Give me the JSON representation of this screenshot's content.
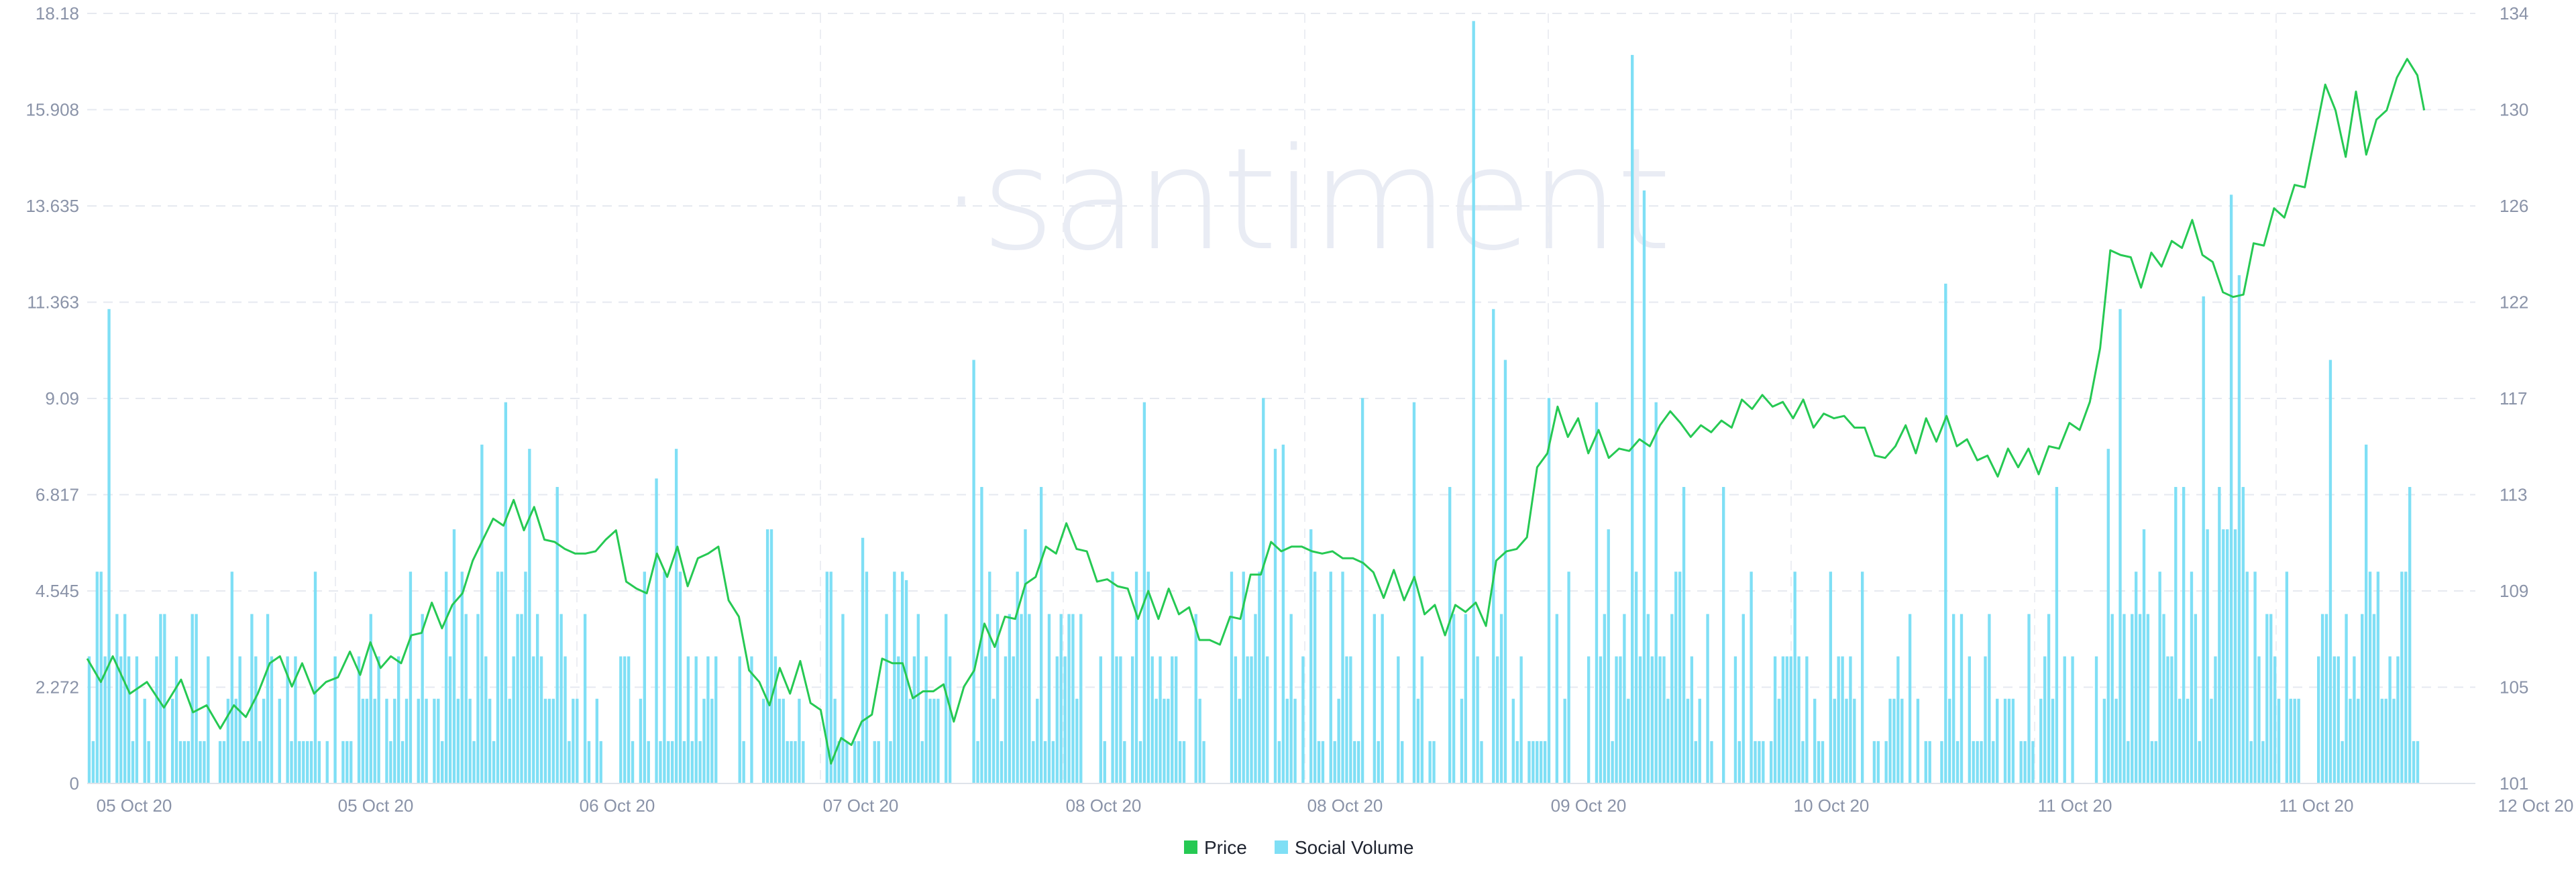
{
  "watermark": "·santiment",
  "chart_data": {
    "type": "line",
    "title": "",
    "xlabel": "",
    "ylabel": "",
    "x_range": [
      "2020-10-04T22:00",
      "2020-10-11T22:00"
    ],
    "x_ticks": [
      {
        "t": 0,
        "label": "05 Oct 20"
      },
      {
        "t": 1.0,
        "label": "05 Oct 20"
      },
      {
        "t": 2.0,
        "label": "06 Oct 20"
      },
      {
        "t": 3.0,
        "label": "07 Oct 20"
      },
      {
        "t": 4.0,
        "label": "08 Oct 20"
      },
      {
        "t": 5.0,
        "label": "08 Oct 20"
      },
      {
        "t": 6.0,
        "label": "09 Oct 20"
      },
      {
        "t": 7.0,
        "label": "10 Oct 20"
      },
      {
        "t": 8.0,
        "label": "11 Oct 20"
      },
      {
        "t": 9.0,
        "label": "11 Oct 20"
      },
      {
        "t": 10.0,
        "label": "12 Oct 20"
      }
    ],
    "y_left": {
      "name": "Social Volume",
      "range": [
        0,
        18.18
      ],
      "ticks": [
        "0",
        "2.272",
        "4.545",
        "6.817",
        "9.09",
        "11.363",
        "13.635",
        "15.908",
        "18.18"
      ]
    },
    "y_right": {
      "name": "Price",
      "range": [
        101,
        134
      ],
      "ticks": [
        "101",
        "105",
        "109",
        "113",
        "117",
        "122",
        "126",
        "130",
        "134"
      ]
    },
    "grid": true,
    "legend_position": "bottom-center",
    "series": [
      {
        "name": "Price",
        "color": "#26c953",
        "type": "line",
        "axis": "right",
        "points": [
          [
            0.0,
            106.0
          ],
          [
            0.08,
            105.7
          ],
          [
            0.15,
            106.1
          ],
          [
            0.25,
            105.2
          ],
          [
            0.35,
            105.0
          ],
          [
            0.45,
            104.6
          ],
          [
            0.55,
            105.1
          ],
          [
            0.62,
            104.4
          ],
          [
            0.7,
            104.0
          ],
          [
            0.78,
            103.7
          ],
          [
            0.86,
            104.0
          ],
          [
            0.93,
            104.2
          ],
          [
            1.0,
            104.5
          ],
          [
            1.07,
            106.5
          ],
          [
            1.13,
            106.1
          ],
          [
            1.2,
            105.5
          ],
          [
            1.26,
            105.8
          ],
          [
            1.33,
            105.2
          ],
          [
            1.4,
            105.0
          ],
          [
            1.47,
            105.9
          ],
          [
            1.54,
            106.3
          ],
          [
            1.6,
            106.0
          ],
          [
            1.66,
            106.7
          ],
          [
            1.72,
            106.3
          ],
          [
            1.78,
            106.1
          ],
          [
            1.84,
            106.5
          ],
          [
            1.9,
            107.0
          ],
          [
            1.96,
            107.8
          ],
          [
            2.02,
            108.4
          ],
          [
            2.08,
            108.0
          ],
          [
            2.14,
            108.3
          ],
          [
            2.2,
            109.5
          ],
          [
            2.26,
            110.2
          ],
          [
            2.32,
            111.8
          ],
          [
            2.38,
            112.0
          ],
          [
            2.44,
            112.4
          ],
          [
            2.5,
            112.8
          ],
          [
            2.56,
            112.2
          ],
          [
            2.62,
            112.5
          ],
          [
            2.68,
            111.8
          ],
          [
            2.74,
            111.0
          ],
          [
            2.8,
            111.4
          ],
          [
            2.86,
            110.5
          ],
          [
            2.92,
            111.2
          ],
          [
            2.98,
            110.6
          ],
          [
            3.04,
            111.8
          ],
          [
            3.1,
            111.5
          ],
          [
            3.16,
            110.0
          ],
          [
            3.22,
            109.0
          ],
          [
            3.28,
            109.5
          ],
          [
            3.34,
            110.5
          ],
          [
            3.4,
            110.2
          ],
          [
            3.46,
            110.8
          ],
          [
            3.52,
            109.8
          ],
          [
            3.58,
            110.3
          ],
          [
            3.64,
            111.2
          ],
          [
            3.7,
            110.8
          ],
          [
            3.76,
            109.2
          ],
          [
            3.82,
            107.8
          ],
          [
            3.88,
            106.2
          ],
          [
            3.94,
            105.0
          ],
          [
            4.0,
            104.7
          ],
          [
            4.06,
            105.6
          ],
          [
            4.12,
            105.2
          ],
          [
            4.18,
            105.9
          ],
          [
            4.24,
            104.8
          ],
          [
            4.3,
            103.8
          ],
          [
            4.36,
            102.2
          ],
          [
            4.42,
            102.6
          ],
          [
            4.48,
            103.0
          ],
          [
            4.54,
            103.3
          ],
          [
            4.6,
            104.3
          ],
          [
            4.66,
            106.0
          ],
          [
            4.72,
            106.5
          ],
          [
            4.78,
            105.8
          ],
          [
            4.84,
            105.0
          ],
          [
            4.9,
            104.6
          ],
          [
            4.96,
            105.3
          ],
          [
            5.02,
            104.9
          ],
          [
            5.08,
            104.0
          ],
          [
            5.14,
            104.8
          ],
          [
            5.2,
            106.2
          ],
          [
            5.26,
            107.5
          ],
          [
            5.32,
            107.2
          ],
          [
            5.38,
            107.8
          ],
          [
            5.44,
            108.4
          ],
          [
            5.5,
            109.2
          ],
          [
            5.56,
            110.2
          ],
          [
            5.62,
            110.8
          ],
          [
            5.68,
            111.2
          ],
          [
            5.74,
            111.8
          ],
          [
            5.8,
            111.4
          ],
          [
            5.86,
            110.6
          ],
          [
            5.92,
            110.0
          ],
          [
            5.98,
            109.4
          ],
          [
            6.04,
            109.8
          ],
          [
            6.1,
            109.0
          ],
          [
            6.16,
            108.4
          ],
          [
            6.22,
            108.9
          ],
          [
            6.28,
            108.4
          ],
          [
            6.34,
            109.0
          ],
          [
            6.4,
            108.6
          ],
          [
            6.46,
            108.2
          ],
          [
            6.52,
            107.5
          ],
          [
            6.58,
            106.8
          ],
          [
            6.64,
            107.3
          ],
          [
            6.7,
            107.8
          ],
          [
            6.76,
            108.4
          ],
          [
            6.82,
            109.6
          ],
          [
            6.88,
            110.3
          ],
          [
            6.94,
            111.0
          ],
          [
            7.0,
            111.3
          ],
          [
            7.06,
            110.8
          ],
          [
            7.12,
            111.5
          ],
          [
            7.18,
            110.6
          ],
          [
            7.24,
            111.2
          ],
          [
            7.3,
            110.6
          ],
          [
            7.36,
            111.0
          ],
          [
            7.42,
            110.3
          ],
          [
            7.48,
            110.8
          ],
          [
            7.54,
            109.7
          ],
          [
            7.6,
            109.3
          ],
          [
            7.66,
            109.8
          ],
          [
            7.72,
            109.2
          ],
          [
            7.78,
            109.5
          ],
          [
            7.84,
            108.6
          ],
          [
            7.9,
            108.3
          ],
          [
            7.96,
            107.7
          ],
          [
            8.02,
            108.3
          ],
          [
            8.08,
            108.7
          ],
          [
            8.14,
            108.4
          ],
          [
            8.2,
            108.1
          ],
          [
            8.26,
            110.2
          ],
          [
            8.32,
            111.3
          ],
          [
            8.38,
            110.7
          ],
          [
            8.44,
            111.9
          ],
          [
            8.5,
            114.2
          ],
          [
            8.56,
            115.5
          ],
          [
            8.62,
            116.8
          ],
          [
            8.68,
            116.2
          ],
          [
            8.74,
            116.3
          ],
          [
            8.8,
            115.5
          ],
          [
            8.86,
            115.8
          ],
          [
            8.92,
            115.3
          ],
          [
            8.98,
            115.0
          ],
          [
            9.04,
            115.6
          ],
          [
            9.1,
            115.4
          ],
          [
            9.16,
            115.8
          ],
          [
            9.22,
            116.0
          ],
          [
            9.28,
            117.3
          ],
          [
            9.34,
            116.1
          ],
          [
            9.4,
            116.2
          ],
          [
            9.46,
            116.0
          ],
          [
            9.52,
            116.4
          ],
          [
            9.58,
            116.2
          ],
          [
            9.64,
            116.6
          ],
          [
            9.7,
            117.1
          ],
          [
            9.76,
            117.4
          ],
          [
            9.82,
            117.3
          ],
          [
            9.88,
            117.5
          ],
          [
            9.94,
            117.0
          ],
          [
            10.0,
            117.0
          ],
          [
            10.06,
            117.1
          ],
          [
            10.12,
            116.6
          ],
          [
            10.18,
            116.5
          ],
          [
            10.24,
            117.0
          ],
          [
            10.3,
            116.4
          ],
          [
            10.36,
            116.6
          ],
          [
            10.42,
            115.9
          ],
          [
            10.48,
            115.4
          ],
          [
            10.54,
            114.6
          ],
          [
            10.6,
            115.8
          ],
          [
            10.66,
            116.0
          ],
          [
            10.72,
            115.5
          ],
          [
            10.78,
            116.3
          ],
          [
            10.84,
            116.0
          ],
          [
            10.9,
            116.4
          ],
          [
            10.96,
            115.8
          ],
          [
            11.02,
            115.4
          ],
          [
            11.08,
            115.2
          ],
          [
            11.14,
            114.7
          ],
          [
            11.2,
            114.5
          ],
          [
            11.26,
            115.0
          ],
          [
            11.32,
            114.9
          ],
          [
            11.38,
            115.0
          ],
          [
            11.44,
            114.6
          ],
          [
            11.5,
            115.1
          ],
          [
            11.56,
            115.7
          ],
          [
            11.62,
            116.1
          ],
          [
            11.68,
            116.5
          ],
          [
            11.74,
            117.0
          ],
          [
            11.8,
            120.0
          ],
          [
            11.86,
            123.5
          ],
          [
            11.92,
            124.0
          ],
          [
            11.98,
            123.2
          ],
          [
            12.04,
            122.6
          ],
          [
            12.1,
            123.4
          ],
          [
            12.16,
            123.5
          ],
          [
            12.22,
            123.9
          ],
          [
            12.28,
            124.3
          ],
          [
            12.34,
            124.8
          ],
          [
            12.4,
            124.0
          ],
          [
            12.46,
            123.0
          ],
          [
            12.52,
            122.4
          ],
          [
            12.58,
            121.5
          ],
          [
            12.64,
            122.3
          ],
          [
            12.7,
            123.8
          ],
          [
            12.76,
            124.4
          ],
          [
            12.82,
            125.3
          ],
          [
            12.88,
            125.6
          ],
          [
            12.94,
            126.3
          ],
          [
            13.0,
            126.9
          ],
          [
            13.06,
            128.4
          ],
          [
            13.12,
            131.3
          ],
          [
            13.18,
            129.5
          ],
          [
            13.24,
            128.2
          ],
          [
            13.3,
            130.3
          ],
          [
            13.36,
            128.3
          ],
          [
            13.42,
            129.1
          ],
          [
            13.48,
            130.2
          ],
          [
            13.54,
            130.9
          ],
          [
            13.6,
            132.4
          ],
          [
            13.66,
            131.0
          ],
          [
            13.7,
            130.2
          ]
        ]
      },
      {
        "name": "Social Volume",
        "color": "#7fdff5",
        "type": "bar",
        "axis": "left",
        "seed": 7
      }
    ],
    "social_volume_peaks": [
      {
        "t": 0.12,
        "v": 11.2
      },
      {
        "t": 0.06,
        "v": 5.0
      },
      {
        "t": 2.46,
        "v": 9.0
      },
      {
        "t": 2.32,
        "v": 8.0
      },
      {
        "t": 2.6,
        "v": 7.9
      },
      {
        "t": 3.45,
        "v": 7.9
      },
      {
        "t": 3.34,
        "v": 7.2
      },
      {
        "t": 4.0,
        "v": 6.0
      },
      {
        "t": 4.55,
        "v": 5.8
      },
      {
        "t": 4.8,
        "v": 4.8
      },
      {
        "t": 5.2,
        "v": 10.0
      },
      {
        "t": 5.25,
        "v": 7.0
      },
      {
        "t": 5.6,
        "v": 7.0
      },
      {
        "t": 6.2,
        "v": 9.0
      },
      {
        "t": 6.9,
        "v": 9.1
      },
      {
        "t": 6.97,
        "v": 7.9
      },
      {
        "t": 7.02,
        "v": 8.0
      },
      {
        "t": 7.18,
        "v": 6.0
      },
      {
        "t": 7.48,
        "v": 9.1
      },
      {
        "t": 7.78,
        "v": 9.0
      },
      {
        "t": 7.98,
        "v": 7.0
      },
      {
        "t": 8.12,
        "v": 18.0
      },
      {
        "t": 8.25,
        "v": 11.2
      },
      {
        "t": 8.32,
        "v": 10.0
      },
      {
        "t": 8.56,
        "v": 9.1
      },
      {
        "t": 8.84,
        "v": 9.0
      },
      {
        "t": 9.05,
        "v": 17.2
      },
      {
        "t": 9.12,
        "v": 14.0
      },
      {
        "t": 9.2,
        "v": 9.0
      },
      {
        "t": 9.35,
        "v": 7.0
      },
      {
        "t": 9.6,
        "v": 7.0
      },
      {
        "t": 10.9,
        "v": 11.8
      },
      {
        "t": 11.55,
        "v": 7.0
      },
      {
        "t": 11.85,
        "v": 7.9
      },
      {
        "t": 11.92,
        "v": 11.2
      },
      {
        "t": 12.25,
        "v": 7.0
      },
      {
        "t": 12.4,
        "v": 11.5
      },
      {
        "t": 12.56,
        "v": 13.9
      },
      {
        "t": 12.62,
        "v": 12.0
      },
      {
        "t": 13.15,
        "v": 10.0
      },
      {
        "t": 13.35,
        "v": 8.0
      }
    ],
    "legend": [
      {
        "label": "Price",
        "color": "#26c953"
      },
      {
        "label": "Social Volume",
        "color": "#7fdff5"
      }
    ]
  }
}
